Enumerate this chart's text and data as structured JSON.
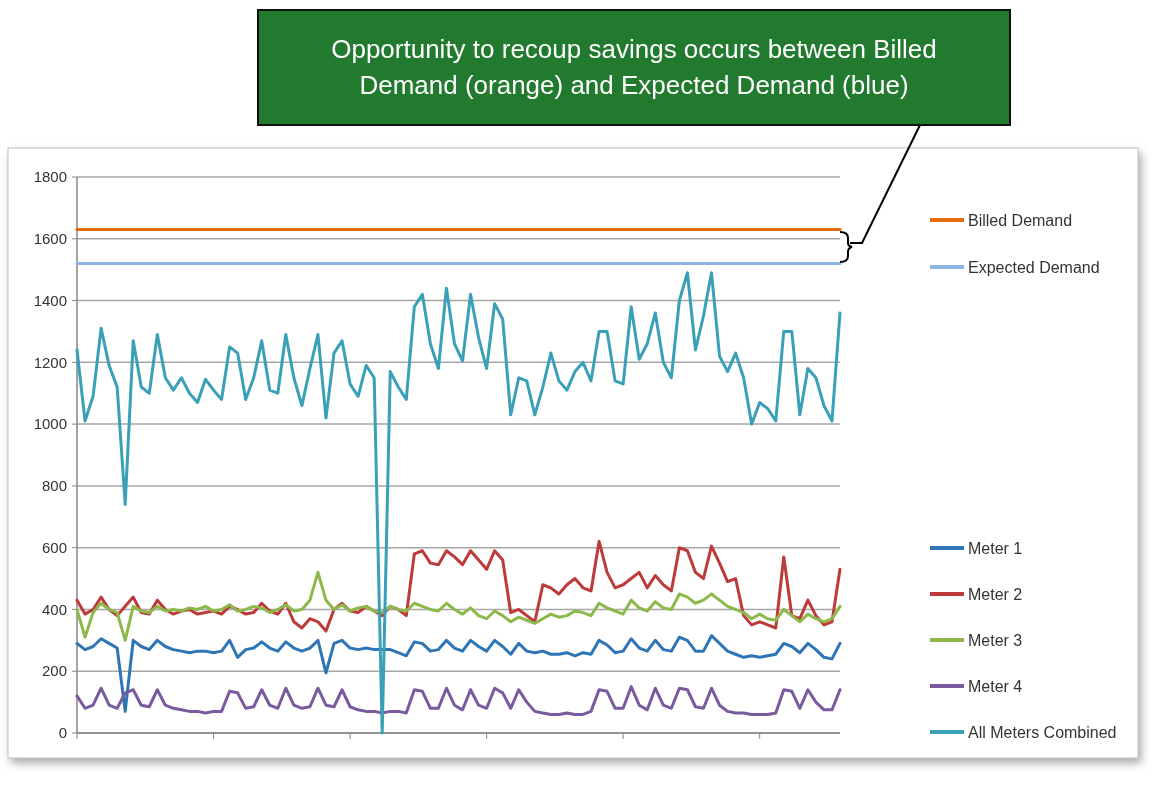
{
  "chart_data": {
    "type": "line",
    "annotations": [
      "Opportunity to recoup savings occurs between Billed Demand (orange) and Expected Demand (blue)"
    ],
    "categories": [
      null,
      null,
      null,
      null,
      null,
      null,
      null,
      null,
      null,
      null,
      null,
      null,
      null,
      null,
      null,
      null,
      null,
      null,
      null,
      null,
      null,
      null,
      null,
      null,
      null,
      null,
      null,
      null,
      null,
      null,
      null,
      null,
      null,
      null,
      null,
      null,
      null,
      null,
      null,
      null,
      null,
      null,
      null,
      null,
      null,
      null,
      null,
      null,
      null,
      null,
      null,
      null,
      null,
      null,
      null,
      null,
      null,
      null,
      null,
      null,
      null,
      null,
      null,
      null,
      null,
      null,
      null,
      null,
      null,
      null,
      null,
      null,
      null,
      null,
      null,
      null,
      null,
      null,
      null,
      null,
      null,
      null,
      null,
      null,
      null,
      null,
      null,
      null,
      null,
      null,
      null,
      null,
      null,
      null,
      null,
      null
    ],
    "series": [
      {
        "name": "Billed Demand",
        "color": "#e46c0a",
        "values": [
          1630,
          1630,
          1630,
          1630,
          1630,
          1630,
          1630,
          1630,
          1630,
          1630,
          1630,
          1630,
          1630,
          1630,
          1630,
          1630,
          1630,
          1630,
          1630,
          1630,
          1630,
          1630,
          1630,
          1630,
          1630,
          1630,
          1630,
          1630,
          1630,
          1630,
          1630,
          1630,
          1630,
          1630,
          1630,
          1630,
          1630,
          1630,
          1630,
          1630,
          1630,
          1630,
          1630,
          1630,
          1630,
          1630,
          1630,
          1630,
          1630,
          1630,
          1630,
          1630,
          1630,
          1630,
          1630,
          1630,
          1630,
          1630,
          1630,
          1630,
          1630,
          1630,
          1630,
          1630,
          1630,
          1630,
          1630,
          1630,
          1630,
          1630,
          1630,
          1630,
          1630,
          1630,
          1630,
          1630,
          1630,
          1630,
          1630,
          1630,
          1630,
          1630,
          1630,
          1630,
          1630,
          1630,
          1630,
          1630,
          1630,
          1630,
          1630,
          1630,
          1630,
          1630,
          1630,
          1630
        ]
      },
      {
        "name": "Expected Demand",
        "color": "#8eb4e3",
        "values": [
          1520,
          1520,
          1520,
          1520,
          1520,
          1520,
          1520,
          1520,
          1520,
          1520,
          1520,
          1520,
          1520,
          1520,
          1520,
          1520,
          1520,
          1520,
          1520,
          1520,
          1520,
          1520,
          1520,
          1520,
          1520,
          1520,
          1520,
          1520,
          1520,
          1520,
          1520,
          1520,
          1520,
          1520,
          1520,
          1520,
          1520,
          1520,
          1520,
          1520,
          1520,
          1520,
          1520,
          1520,
          1520,
          1520,
          1520,
          1520,
          1520,
          1520,
          1520,
          1520,
          1520,
          1520,
          1520,
          1520,
          1520,
          1520,
          1520,
          1520,
          1520,
          1520,
          1520,
          1520,
          1520,
          1520,
          1520,
          1520,
          1520,
          1520,
          1520,
          1520,
          1520,
          1520,
          1520,
          1520,
          1520,
          1520,
          1520,
          1520,
          1520,
          1520,
          1520,
          1520,
          1520,
          1520,
          1520,
          1520,
          1520,
          1520,
          1520,
          1520,
          1520,
          1520,
          1520,
          1520
        ]
      },
      {
        "name": "Meter 1",
        "color": "#2e75b6",
        "values": [
          290,
          270,
          280,
          305,
          290,
          275,
          70,
          300,
          280,
          270,
          300,
          280,
          270,
          265,
          260,
          265,
          265,
          260,
          265,
          300,
          245,
          270,
          275,
          295,
          275,
          265,
          295,
          275,
          265,
          275,
          300,
          195,
          290,
          300,
          275,
          270,
          275,
          270,
          270,
          270,
          260,
          250,
          295,
          290,
          265,
          270,
          300,
          275,
          265,
          300,
          280,
          265,
          300,
          280,
          255,
          290,
          265,
          260,
          265,
          255,
          255,
          260,
          250,
          260,
          255,
          300,
          285,
          260,
          265,
          305,
          275,
          265,
          300,
          270,
          265,
          310,
          300,
          265,
          265,
          315,
          290,
          265,
          255,
          245,
          250,
          245,
          250,
          255,
          290,
          280,
          260,
          290,
          270,
          245,
          240,
          290
        ]
      },
      {
        "name": "Meter 2",
        "color": "#be3a3a",
        "values": [
          430,
          385,
          400,
          440,
          400,
          380,
          410,
          440,
          390,
          385,
          430,
          400,
          385,
          395,
          400,
          385,
          390,
          395,
          385,
          410,
          400,
          385,
          390,
          420,
          395,
          385,
          420,
          360,
          340,
          370,
          360,
          330,
          400,
          420,
          395,
          390,
          410,
          395,
          380,
          410,
          400,
          380,
          580,
          590,
          550,
          545,
          590,
          570,
          545,
          590,
          560,
          530,
          590,
          560,
          390,
          400,
          380,
          360,
          480,
          470,
          450,
          480,
          500,
          470,
          460,
          620,
          520,
          470,
          480,
          500,
          520,
          470,
          510,
          480,
          460,
          600,
          590,
          520,
          500,
          605,
          550,
          490,
          500,
          380,
          350,
          360,
          350,
          340,
          570,
          380,
          370,
          430,
          380,
          350,
          360,
          530
        ]
      },
      {
        "name": "Meter 3",
        "color": "#8db84a",
        "values": [
          400,
          310,
          390,
          420,
          400,
          390,
          300,
          410,
          395,
          390,
          410,
          395,
          400,
          395,
          405,
          400,
          410,
          395,
          400,
          415,
          395,
          400,
          410,
          405,
          390,
          400,
          415,
          395,
          400,
          430,
          520,
          430,
          400,
          415,
          395,
          405,
          410,
          395,
          390,
          410,
          400,
          395,
          420,
          410,
          400,
          395,
          420,
          400,
          385,
          405,
          380,
          370,
          395,
          380,
          360,
          375,
          365,
          355,
          370,
          385,
          375,
          380,
          395,
          390,
          380,
          420,
          405,
          395,
          385,
          430,
          405,
          395,
          425,
          405,
          400,
          450,
          440,
          420,
          430,
          450,
          430,
          410,
          400,
          390,
          370,
          385,
          370,
          365,
          400,
          380,
          360,
          385,
          370,
          360,
          370,
          410
        ]
      },
      {
        "name": "Meter 4",
        "color": "#7a5a9e",
        "values": [
          120,
          80,
          90,
          145,
          90,
          80,
          130,
          140,
          90,
          85,
          140,
          90,
          80,
          75,
          70,
          70,
          65,
          70,
          70,
          135,
          130,
          80,
          85,
          140,
          90,
          80,
          145,
          90,
          80,
          85,
          145,
          90,
          85,
          140,
          85,
          75,
          70,
          70,
          65,
          70,
          70,
          65,
          140,
          135,
          80,
          80,
          145,
          90,
          75,
          140,
          90,
          80,
          145,
          130,
          80,
          140,
          100,
          70,
          65,
          60,
          60,
          65,
          60,
          60,
          70,
          140,
          135,
          80,
          80,
          150,
          90,
          75,
          145,
          90,
          80,
          145,
          140,
          85,
          80,
          145,
          90,
          70,
          65,
          65,
          60,
          60,
          60,
          65,
          140,
          135,
          80,
          140,
          100,
          75,
          75,
          140
        ]
      },
      {
        "name": "All Meters Combined",
        "color": "#3aa0b8",
        "values": [
          1240,
          1010,
          1090,
          1310,
          1190,
          1120,
          740,
          1270,
          1120,
          1100,
          1290,
          1150,
          1110,
          1150,
          1100,
          1070,
          1145,
          1110,
          1080,
          1250,
          1230,
          1080,
          1150,
          1270,
          1110,
          1100,
          1290,
          1150,
          1060,
          1180,
          1290,
          1020,
          1230,
          1270,
          1130,
          1090,
          1190,
          1150,
          0,
          1170,
          1120,
          1080,
          1380,
          1420,
          1260,
          1180,
          1440,
          1260,
          1205,
          1420,
          1280,
          1180,
          1390,
          1340,
          1030,
          1150,
          1140,
          1030,
          1120,
          1230,
          1140,
          1110,
          1170,
          1200,
          1140,
          1300,
          1300,
          1140,
          1130,
          1380,
          1210,
          1260,
          1360,
          1200,
          1150,
          1400,
          1490,
          1240,
          1350,
          1490,
          1220,
          1170,
          1230,
          1150,
          1000,
          1070,
          1050,
          1010,
          1300,
          1300,
          1030,
          1180,
          1150,
          1060,
          1010,
          1360
        ]
      }
    ],
    "ylim": [
      0,
      1800
    ],
    "yticks": [
      0,
      200,
      400,
      600,
      800,
      1000,
      1200,
      1400,
      1600,
      1800
    ],
    "grid": "y",
    "legend": "right"
  }
}
